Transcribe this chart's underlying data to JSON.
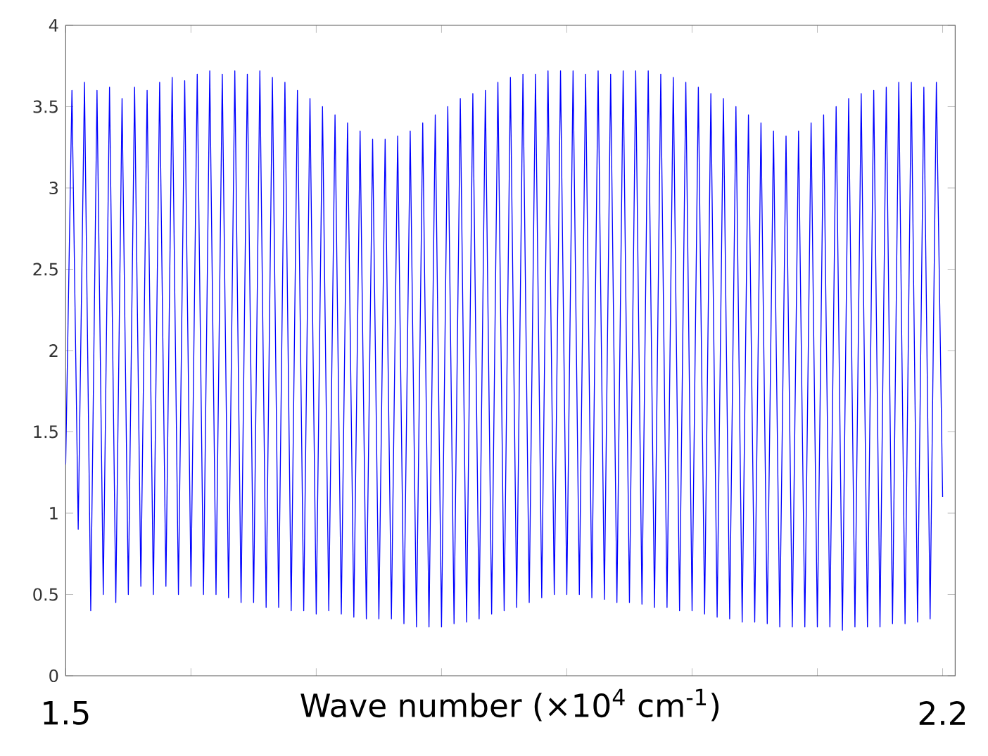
{
  "chart_data": {
    "type": "line",
    "xlabel": "Wave number  (×10$^{4}$ cm$^{-1}$)",
    "xlim": [
      1.5,
      2.21
    ],
    "xticks": [
      {
        "value": 1.5,
        "label": "1.5"
      },
      {
        "value": 1.6,
        "label": null
      },
      {
        "value": 1.7,
        "label": null
      },
      {
        "value": 1.8,
        "label": null
      },
      {
        "value": 1.9,
        "label": null
      },
      {
        "value": 2.0,
        "label": null
      },
      {
        "value": 2.1,
        "label": null
      },
      {
        "value": 2.2,
        "label": "2.2"
      }
    ],
    "ylim": [
      0,
      4
    ],
    "yticks": [
      0,
      0.5,
      1,
      1.5,
      2,
      2.5,
      3,
      3.5,
      4
    ],
    "marker": "none",
    "line_style": "solid",
    "series": [
      {
        "color": "#0000ff",
        "x": [
          1.5,
          1.505,
          1.51,
          1.515,
          1.52,
          1.525,
          1.53,
          1.535,
          1.54,
          1.545,
          1.55,
          1.555,
          1.56,
          1.565,
          1.57,
          1.575,
          1.58,
          1.585,
          1.59,
          1.595,
          1.6,
          1.605,
          1.61,
          1.615,
          1.62,
          1.625,
          1.63,
          1.635,
          1.64,
          1.645,
          1.65,
          1.655,
          1.66,
          1.665,
          1.67,
          1.675,
          1.68,
          1.685,
          1.69,
          1.695,
          1.7,
          1.705,
          1.71,
          1.715,
          1.72,
          1.725,
          1.73,
          1.735,
          1.74,
          1.745,
          1.75,
          1.755,
          1.76,
          1.765,
          1.77,
          1.775,
          1.78,
          1.785,
          1.79,
          1.795,
          1.8,
          1.805,
          1.81,
          1.815,
          1.82,
          1.825,
          1.83,
          1.835,
          1.84,
          1.845,
          1.85,
          1.855,
          1.86,
          1.865,
          1.87,
          1.875,
          1.88,
          1.885,
          1.89,
          1.895,
          1.9,
          1.905,
          1.91,
          1.915,
          1.92,
          1.925,
          1.93,
          1.935,
          1.94,
          1.945,
          1.95,
          1.955,
          1.96,
          1.965,
          1.97,
          1.975,
          1.98,
          1.985,
          1.99,
          1.995,
          2.0,
          2.005,
          2.01,
          2.015,
          2.02,
          2.025,
          2.03,
          2.035,
          2.04,
          2.045,
          2.05,
          2.055,
          2.06,
          2.065,
          2.07,
          2.075,
          2.08,
          2.085,
          2.09,
          2.095,
          2.1,
          2.105,
          2.11,
          2.115,
          2.12,
          2.125,
          2.13,
          2.135,
          2.14,
          2.145,
          2.15,
          2.155,
          2.16,
          2.165,
          2.17,
          2.175,
          2.18,
          2.185,
          2.19,
          2.195,
          2.2
        ],
        "values": [
          1.3,
          3.6,
          0.9,
          3.65,
          0.4,
          3.6,
          0.5,
          3.62,
          0.45,
          3.55,
          0.5,
          3.62,
          0.55,
          3.6,
          0.5,
          3.65,
          0.55,
          3.68,
          0.5,
          3.66,
          0.55,
          3.7,
          0.5,
          3.72,
          0.5,
          3.7,
          0.48,
          3.72,
          0.45,
          3.7,
          0.45,
          3.72,
          0.42,
          3.68,
          0.42,
          3.65,
          0.4,
          3.6,
          0.4,
          3.55,
          0.38,
          3.5,
          0.4,
          3.45,
          0.38,
          3.4,
          0.36,
          3.35,
          0.35,
          3.3,
          0.35,
          3.3,
          0.35,
          3.32,
          0.32,
          3.35,
          0.3,
          3.4,
          0.3,
          3.45,
          0.3,
          3.5,
          0.32,
          3.55,
          0.33,
          3.58,
          0.35,
          3.6,
          0.38,
          3.65,
          0.4,
          3.68,
          0.42,
          3.7,
          0.45,
          3.7,
          0.48,
          3.72,
          0.5,
          3.72,
          0.5,
          3.72,
          0.5,
          3.7,
          0.48,
          3.72,
          0.47,
          3.7,
          0.45,
          3.72,
          0.45,
          3.72,
          0.44,
          3.72,
          0.42,
          3.7,
          0.42,
          3.68,
          0.4,
          3.65,
          0.4,
          3.62,
          0.38,
          3.58,
          0.36,
          3.55,
          0.35,
          3.5,
          0.33,
          3.45,
          0.33,
          3.4,
          0.32,
          3.35,
          0.3,
          3.32,
          0.3,
          3.35,
          0.3,
          3.4,
          0.3,
          3.45,
          0.3,
          3.5,
          0.28,
          3.55,
          0.3,
          3.58,
          0.3,
          3.6,
          0.3,
          3.62,
          0.32,
          3.65,
          0.32,
          3.65,
          0.33,
          3.62,
          0.35,
          3.65,
          1.1
        ]
      }
    ]
  }
}
